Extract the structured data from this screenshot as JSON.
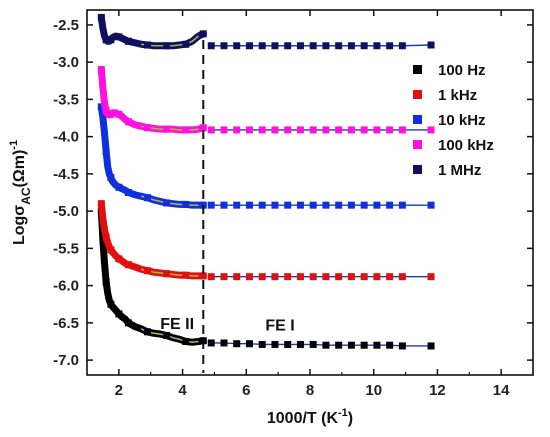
{
  "chart_data": {
    "type": "scatter",
    "xlabel": "1000/T (K",
    "xlabel_sup": "-1",
    "xlabel_close": ")",
    "ylabel_main": "Logσ",
    "ylabel_sub": "AC",
    "ylabel_unit": "(Ωm)",
    "ylabel_sup": "-1",
    "xlim": [
      1,
      15
    ],
    "ylim": [
      -7.2,
      -2.3
    ],
    "xticks": [
      2,
      4,
      6,
      8,
      10,
      12,
      14
    ],
    "xtick_labels": [
      "2",
      "4",
      "6",
      "8",
      "10",
      "12",
      "14"
    ],
    "yticks": [
      -2.5,
      -3.0,
      -3.5,
      -4.0,
      -4.5,
      -5.0,
      -5.5,
      -6.0,
      -6.5,
      -7.0
    ],
    "ytick_labels": [
      "-2.5",
      "-3.0",
      "-3.5",
      "-4.0",
      "-4.5",
      "-5.0",
      "-5.5",
      "-6.0",
      "-6.5",
      "-7.0"
    ],
    "legend_position": "right",
    "transition_x": 4.65,
    "annotations": [
      {
        "text": "FE II",
        "x": 3.3,
        "y": -6.58
      },
      {
        "text": "FE I",
        "x": 6.6,
        "y": -6.6
      }
    ],
    "series": [
      {
        "name": "100 Hz",
        "color": "#000000",
        "dense_x": [
          1.45,
          1.5,
          1.55,
          1.6,
          1.65,
          1.7,
          1.75,
          1.8,
          1.9,
          2.0,
          2.1,
          2.2,
          2.3,
          2.5,
          2.7,
          2.9,
          3.1,
          3.3,
          3.5,
          3.7,
          3.9,
          4.1,
          4.3,
          4.5,
          4.65
        ],
        "dense_y": [
          -5.0,
          -5.4,
          -5.7,
          -5.95,
          -6.1,
          -6.2,
          -6.25,
          -6.28,
          -6.33,
          -6.38,
          -6.42,
          -6.45,
          -6.5,
          -6.55,
          -6.58,
          -6.62,
          -6.64,
          -6.65,
          -6.67,
          -6.7,
          -6.72,
          -6.75,
          -6.76,
          -6.75,
          -6.74
        ],
        "sparse_x": [
          4.9,
          5.3,
          5.7,
          6.1,
          6.5,
          6.9,
          7.3,
          7.7,
          8.1,
          8.5,
          8.9,
          9.3,
          9.7,
          10.1,
          10.5,
          10.9,
          11.8
        ],
        "sparse_y": [
          -6.77,
          -6.77,
          -6.78,
          -6.78,
          -6.79,
          -6.79,
          -6.79,
          -6.79,
          -6.79,
          -6.8,
          -6.8,
          -6.8,
          -6.8,
          -6.8,
          -6.8,
          -6.81,
          -6.81
        ]
      },
      {
        "name": "1 kHz",
        "color": "#e01010",
        "dense_x": [
          1.45,
          1.5,
          1.55,
          1.6,
          1.65,
          1.7,
          1.75,
          1.8,
          1.9,
          2.0,
          2.1,
          2.2,
          2.3,
          2.5,
          2.7,
          2.9,
          3.1,
          3.3,
          3.5,
          3.7,
          3.9,
          4.1,
          4.3,
          4.5,
          4.65
        ],
        "dense_y": [
          -4.9,
          -5.1,
          -5.25,
          -5.35,
          -5.42,
          -5.48,
          -5.52,
          -5.55,
          -5.6,
          -5.64,
          -5.67,
          -5.7,
          -5.72,
          -5.75,
          -5.78,
          -5.8,
          -5.82,
          -5.83,
          -5.84,
          -5.85,
          -5.86,
          -5.86,
          -5.87,
          -5.87,
          -5.87
        ],
        "sparse_x": [
          4.9,
          5.3,
          5.7,
          6.1,
          6.5,
          6.9,
          7.3,
          7.7,
          8.1,
          8.5,
          8.9,
          9.3,
          9.7,
          10.1,
          10.5,
          10.9,
          11.8
        ],
        "sparse_y": [
          -5.88,
          -5.88,
          -5.88,
          -5.88,
          -5.88,
          -5.88,
          -5.88,
          -5.88,
          -5.88,
          -5.88,
          -5.88,
          -5.88,
          -5.88,
          -5.88,
          -5.88,
          -5.88,
          -5.88
        ]
      },
      {
        "name": "10 kHz",
        "color": "#1030e0",
        "dense_x": [
          1.45,
          1.5,
          1.55,
          1.6,
          1.65,
          1.7,
          1.75,
          1.8,
          1.9,
          2.0,
          2.1,
          2.2,
          2.3,
          2.5,
          2.7,
          2.9,
          3.1,
          3.3,
          3.5,
          3.7,
          3.9,
          4.1,
          4.3,
          4.5,
          4.65
        ],
        "dense_y": [
          -3.6,
          -3.75,
          -3.95,
          -4.2,
          -4.4,
          -4.5,
          -4.55,
          -4.6,
          -4.65,
          -4.68,
          -4.7,
          -4.72,
          -4.75,
          -4.78,
          -4.8,
          -4.82,
          -4.85,
          -4.87,
          -4.89,
          -4.9,
          -4.91,
          -4.91,
          -4.92,
          -4.92,
          -4.92
        ],
        "sparse_x": [
          4.9,
          5.3,
          5.7,
          6.1,
          6.5,
          6.9,
          7.3,
          7.7,
          8.1,
          8.5,
          8.9,
          9.3,
          9.7,
          10.1,
          10.5,
          10.9,
          11.8
        ],
        "sparse_y": [
          -4.92,
          -4.92,
          -4.92,
          -4.92,
          -4.92,
          -4.92,
          -4.92,
          -4.92,
          -4.92,
          -4.92,
          -4.92,
          -4.92,
          -4.92,
          -4.92,
          -4.92,
          -4.92,
          -4.92
        ]
      },
      {
        "name": "100 kHz",
        "color": "#ff10e0",
        "dense_x": [
          1.45,
          1.5,
          1.55,
          1.6,
          1.65,
          1.7,
          1.75,
          1.8,
          1.9,
          2.0,
          2.1,
          2.2,
          2.3,
          2.5,
          2.7,
          2.9,
          3.1,
          3.3,
          3.5,
          3.7,
          3.9,
          4.1,
          4.3,
          4.5,
          4.65
        ],
        "dense_y": [
          -3.1,
          -3.35,
          -3.55,
          -3.65,
          -3.7,
          -3.71,
          -3.7,
          -3.68,
          -3.68,
          -3.7,
          -3.73,
          -3.77,
          -3.8,
          -3.84,
          -3.86,
          -3.88,
          -3.89,
          -3.9,
          -3.9,
          -3.9,
          -3.91,
          -3.91,
          -3.91,
          -3.9,
          -3.88
        ],
        "sparse_x": [
          4.9,
          5.3,
          5.7,
          6.1,
          6.5,
          6.9,
          7.3,
          7.7,
          8.1,
          8.5,
          8.9,
          9.3,
          9.7,
          10.1,
          10.5,
          10.9,
          11.8
        ],
        "sparse_y": [
          -3.91,
          -3.91,
          -3.91,
          -3.91,
          -3.91,
          -3.91,
          -3.91,
          -3.91,
          -3.91,
          -3.91,
          -3.91,
          -3.91,
          -3.91,
          -3.91,
          -3.91,
          -3.91,
          -3.91
        ]
      },
      {
        "name": "1 MHz",
        "color": "#101060",
        "dense_x": [
          1.45,
          1.5,
          1.55,
          1.6,
          1.65,
          1.7,
          1.75,
          1.8,
          1.9,
          2.0,
          2.1,
          2.2,
          2.3,
          2.5,
          2.7,
          2.9,
          3.1,
          3.3,
          3.5,
          3.7,
          3.9,
          4.1,
          4.3,
          4.5,
          4.65
        ],
        "dense_y": [
          -2.4,
          -2.55,
          -2.65,
          -2.7,
          -2.72,
          -2.72,
          -2.7,
          -2.67,
          -2.65,
          -2.66,
          -2.68,
          -2.7,
          -2.72,
          -2.74,
          -2.76,
          -2.77,
          -2.78,
          -2.78,
          -2.78,
          -2.78,
          -2.77,
          -2.76,
          -2.72,
          -2.65,
          -2.62
        ],
        "sparse_x": [
          4.9,
          5.3,
          5.7,
          6.1,
          6.5,
          6.9,
          7.3,
          7.7,
          8.1,
          8.5,
          8.9,
          9.3,
          9.7,
          10.1,
          10.5,
          10.9,
          11.8
        ],
        "sparse_y": [
          -2.78,
          -2.78,
          -2.78,
          -2.78,
          -2.78,
          -2.78,
          -2.78,
          -2.78,
          -2.78,
          -2.78,
          -2.78,
          -2.78,
          -2.78,
          -2.78,
          -2.78,
          -2.78,
          -2.77
        ]
      }
    ]
  }
}
